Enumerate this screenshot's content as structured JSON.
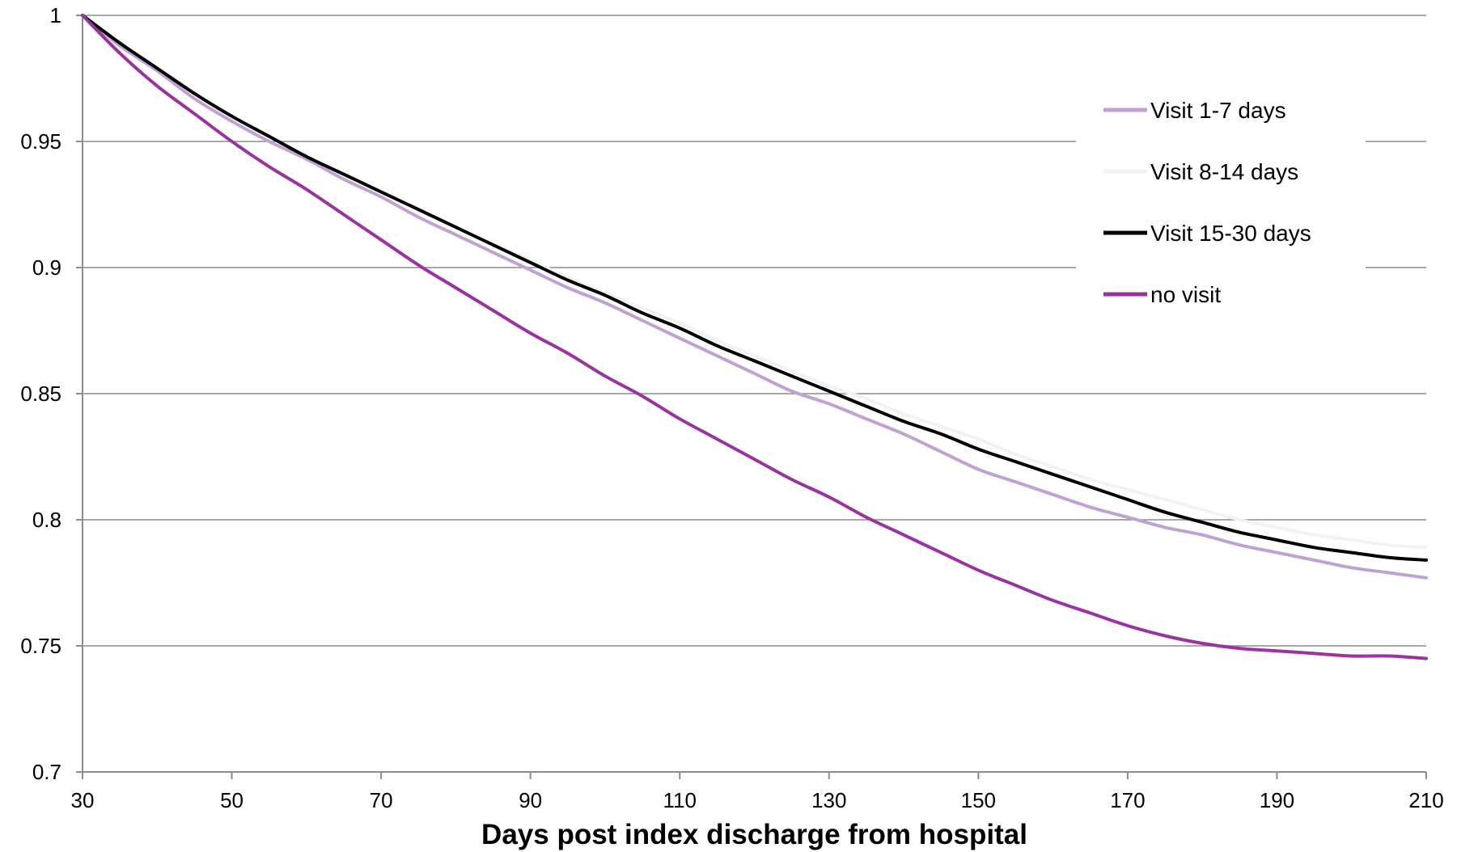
{
  "chart_data": {
    "type": "line",
    "title": "",
    "xlabel": "Days post index discharge from hospital",
    "ylabel": "",
    "xlim": [
      30,
      210
    ],
    "ylim": [
      0.7,
      1
    ],
    "x_ticks": [
      30,
      50,
      70,
      90,
      110,
      130,
      150,
      170,
      190,
      210
    ],
    "x_tick_labels": [
      "30",
      "50",
      "70",
      "90",
      "110",
      "130",
      "150",
      "170",
      "190",
      "210"
    ],
    "y_ticks": [
      0.7,
      0.75,
      0.8,
      0.85,
      0.9,
      0.95,
      1
    ],
    "y_tick_labels": [
      "0.7",
      "0.75",
      "0.8",
      "0.85",
      "0.9",
      "0.95",
      "1"
    ],
    "grid": "horizontal",
    "legend_position": "top-right",
    "x": [
      30,
      35,
      40,
      45,
      50,
      55,
      60,
      65,
      70,
      75,
      80,
      85,
      90,
      95,
      100,
      105,
      110,
      115,
      120,
      125,
      130,
      135,
      140,
      145,
      150,
      155,
      160,
      165,
      170,
      175,
      180,
      185,
      190,
      195,
      200,
      205,
      210
    ],
    "series": [
      {
        "name": "Visit 1-7 days",
        "color": "#c1a1d3",
        "values": [
          1.0,
          0.988,
          0.978,
          0.967,
          0.958,
          0.95,
          0.943,
          0.935,
          0.928,
          0.92,
          0.913,
          0.906,
          0.899,
          0.892,
          0.886,
          0.879,
          0.872,
          0.865,
          0.858,
          0.851,
          0.846,
          0.84,
          0.834,
          0.827,
          0.82,
          0.815,
          0.81,
          0.805,
          0.801,
          0.797,
          0.794,
          0.79,
          0.787,
          0.784,
          0.781,
          0.779,
          0.777
        ]
      },
      {
        "name": "Visit 8-14 days",
        "color": "#f2f2f2",
        "values": [
          1.0,
          0.989,
          0.979,
          0.969,
          0.96,
          0.952,
          0.944,
          0.937,
          0.93,
          0.923,
          0.916,
          0.909,
          0.903,
          0.896,
          0.89,
          0.884,
          0.878,
          0.871,
          0.865,
          0.859,
          0.853,
          0.848,
          0.842,
          0.837,
          0.832,
          0.826,
          0.821,
          0.816,
          0.812,
          0.808,
          0.804,
          0.8,
          0.797,
          0.794,
          0.792,
          0.79,
          0.789
        ]
      },
      {
        "name": "Visit 15-30 days",
        "color": "#000000",
        "values": [
          1.0,
          0.989,
          0.979,
          0.969,
          0.96,
          0.952,
          0.944,
          0.937,
          0.93,
          0.923,
          0.916,
          0.909,
          0.902,
          0.895,
          0.889,
          0.882,
          0.876,
          0.869,
          0.863,
          0.857,
          0.851,
          0.845,
          0.839,
          0.834,
          0.828,
          0.823,
          0.818,
          0.813,
          0.808,
          0.803,
          0.799,
          0.795,
          0.792,
          0.789,
          0.787,
          0.785,
          0.784
        ]
      },
      {
        "name": "no visit",
        "color": "#9933a0",
        "values": [
          1.0,
          0.985,
          0.972,
          0.961,
          0.95,
          0.94,
          0.931,
          0.921,
          0.911,
          0.901,
          0.892,
          0.883,
          0.874,
          0.866,
          0.857,
          0.849,
          0.84,
          0.832,
          0.824,
          0.816,
          0.809,
          0.801,
          0.794,
          0.787,
          0.78,
          0.774,
          0.768,
          0.763,
          0.758,
          0.754,
          0.751,
          0.749,
          0.748,
          0.747,
          0.746,
          0.746,
          0.745
        ]
      }
    ]
  }
}
